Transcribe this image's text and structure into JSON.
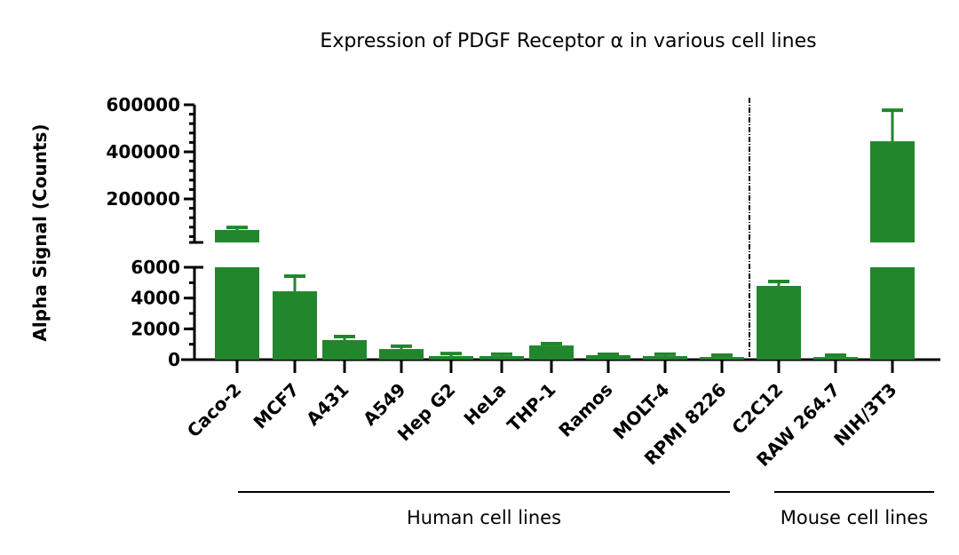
{
  "chart_data": {
    "type": "bar",
    "title": "Expression of PDGF Receptor α  in various cell lines",
    "ylabel": "Alpha Signal (Counts)",
    "xlabel": "",
    "y_axis_broken": true,
    "ylim_lower": [
      0,
      6000
    ],
    "ylim_upper": [
      6000,
      600000
    ],
    "yticks_lower": [
      "0",
      "2000",
      "4000",
      "6000"
    ],
    "yticks_upper": [
      "200000",
      "400000",
      "600000"
    ],
    "yticks_lower_values": [
      0,
      2000,
      4000,
      6000
    ],
    "yticks_upper_values": [
      200000,
      400000,
      600000
    ],
    "grid": false,
    "bar_color": "#22862c",
    "categories": [
      "Caco-2",
      "MCF7",
      "A431",
      "A549",
      "Hep G2",
      "HeLa",
      "THP-1",
      "Ramos",
      "MOLT-4",
      "RPMI 8226",
      "C2C12",
      "RAW 264.7",
      "NIH/3T3"
    ],
    "values": [
      68000,
      4440,
      1270,
      690,
      230,
      230,
      920,
      290,
      230,
      170,
      4790,
      170,
      445000
    ],
    "error_upper": [
      79000,
      5420,
      1500,
      870,
      400,
      350,
      1040,
      290,
      350,
      290,
      5080,
      290,
      577000
    ],
    "groups": [
      {
        "label": "Human cell lines",
        "from": "Caco-2",
        "to": "RPMI 8226"
      },
      {
        "label": "Mouse cell lines",
        "from": "C2C12",
        "to": "NIH/3T3"
      }
    ],
    "divider_between": [
      "RPMI 8226",
      "C2C12"
    ]
  }
}
